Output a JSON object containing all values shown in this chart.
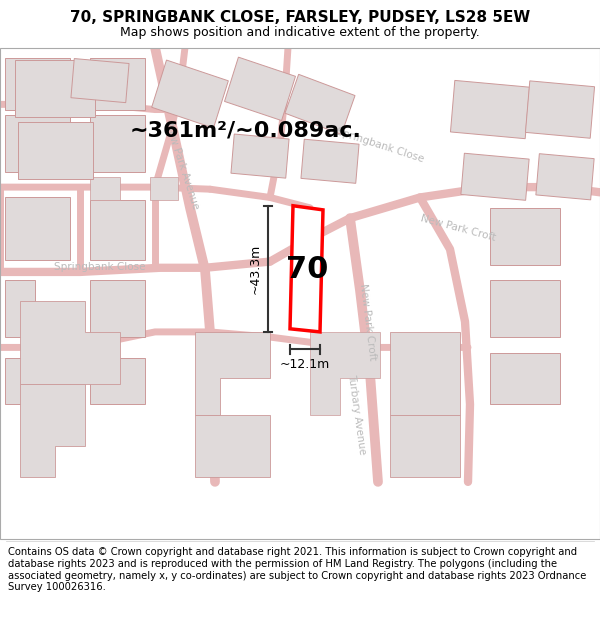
{
  "title": "70, SPRINGBANK CLOSE, FARSLEY, PUDSEY, LS28 5EW",
  "subtitle": "Map shows position and indicative extent of the property.",
  "area_label": "~361m²/~0.089ac.",
  "number_label": "70",
  "width_label": "~12.1m",
  "height_label": "~43.3m",
  "footer": "Contains OS data © Crown copyright and database right 2021. This information is subject to Crown copyright and database rights 2023 and is reproduced with the permission of HM Land Registry. The polygons (including the associated geometry, namely x, y co-ordinates) are subject to Crown copyright and database rights 2023 Ordnance Survey 100026316.",
  "bg_color": "#ffffff",
  "map_bg": "#f5f0ee",
  "road_stroke": "#e8b8b8",
  "building_fill": "#e0dada",
  "building_edge": "#cc9999",
  "highlight_color": "#ff0000",
  "dim_color": "#333333",
  "label_color": "#bbbbbb",
  "title_fontsize": 11,
  "subtitle_fontsize": 9,
  "footer_fontsize": 7.2,
  "area_fontsize": 16,
  "number_fontsize": 22,
  "dim_fontsize": 9,
  "road_label_fontsize": 7.5
}
